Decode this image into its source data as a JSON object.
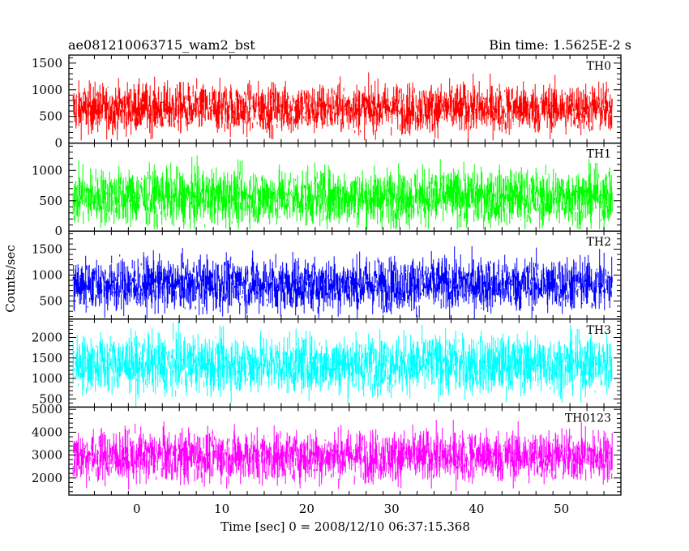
{
  "chart_data": {
    "type": "line",
    "title": "ae081210063715_wam2_bst",
    "subtitle": "Bin time: 1.5625E-2 s",
    "xlabel": "Time [sec] 0 = 2008/12/10 06:37:15.368",
    "ylabel": "Counts/sec",
    "xlim": [
      -8,
      57
    ],
    "xticks": [
      0,
      10,
      20,
      30,
      40,
      50
    ],
    "x_start": -7.5,
    "x_end": 56,
    "panels": [
      {
        "name": "TH0",
        "color": "#ff0000",
        "ylim": [
          0,
          1650
        ],
        "yticks": [
          0,
          500,
          1000,
          1500
        ],
        "mean": 650,
        "spread": 230,
        "min": 50,
        "max": 1650
      },
      {
        "name": "TH1",
        "color": "#00ff00",
        "ylim": [
          0,
          1450
        ],
        "yticks": [
          0,
          500,
          1000
        ],
        "mean": 560,
        "spread": 230,
        "min": 30,
        "max": 1450
      },
      {
        "name": "TH2",
        "color": "#0000ff",
        "ylim": [
          150,
          1850
        ],
        "yticks": [
          500,
          1000,
          1500
        ],
        "mean": 820,
        "spread": 260,
        "min": 150,
        "max": 1850
      },
      {
        "name": "TH3",
        "color": "#00ffff",
        "ylim": [
          300,
          2450
        ],
        "yticks": [
          500,
          1000,
          1500,
          2000
        ],
        "mean": 1350,
        "spread": 350,
        "min": 300,
        "max": 2450
      },
      {
        "name": "TH0123",
        "color": "#ff00ff",
        "ylim": [
          1250,
          5100
        ],
        "yticks": [
          2000,
          3000,
          4000,
          5000
        ],
        "mean": 2950,
        "spread": 560,
        "min": 1250,
        "max": 5100
      }
    ]
  }
}
